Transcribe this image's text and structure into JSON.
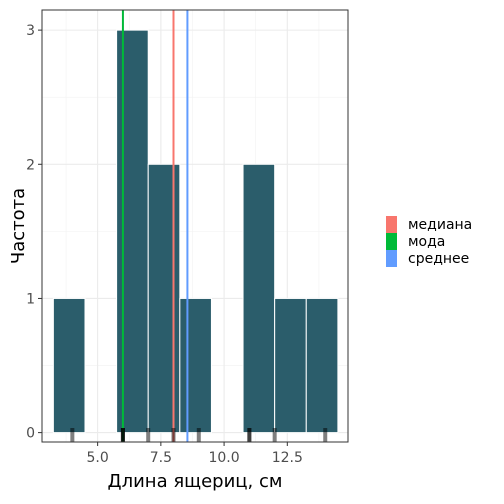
{
  "chart_data": {
    "type": "bar",
    "xlabel": "Длина ящериц, см",
    "ylabel": "Частота",
    "xlim": [
      2.8,
      14.9
    ],
    "ylim": [
      -0.07,
      3.15
    ],
    "x_ticks": [
      5.0,
      7.5,
      10.0,
      12.5
    ],
    "x_tick_labels": [
      "5.0",
      "7.5",
      "10.0",
      "12.5"
    ],
    "y_ticks": [
      0,
      1,
      2,
      3
    ],
    "y_tick_labels": [
      "0",
      "1",
      "2",
      "3"
    ],
    "bin_width": 1.25,
    "bins": [
      {
        "start": 3.25,
        "end": 4.5,
        "count": 1
      },
      {
        "start": 4.5,
        "end": 5.75,
        "count": 0
      },
      {
        "start": 5.75,
        "end": 7.0,
        "count": 3
      },
      {
        "start": 7.0,
        "end": 8.25,
        "count": 2
      },
      {
        "start": 8.25,
        "end": 9.5,
        "count": 1
      },
      {
        "start": 9.5,
        "end": 10.75,
        "count": 0
      },
      {
        "start": 10.75,
        "end": 12.0,
        "count": 2
      },
      {
        "start": 12.0,
        "end": 13.25,
        "count": 1
      },
      {
        "start": 13.25,
        "end": 14.5,
        "count": 1
      }
    ],
    "rug": [
      4.0,
      6.0,
      6.0,
      6.0,
      7.0,
      8.0,
      9.0,
      11.0,
      11.0,
      12.0,
      14.0
    ],
    "reference_lines": [
      {
        "name": "медиана",
        "value": 8.0,
        "color": "#F8766D"
      },
      {
        "name": "мода",
        "value": 6.0,
        "color": "#00BA38"
      },
      {
        "name": "среднее",
        "value": 8.55,
        "color": "#619CFF"
      }
    ],
    "bar_color": "#2B5D6B",
    "grid": true,
    "legend_position": "right"
  }
}
